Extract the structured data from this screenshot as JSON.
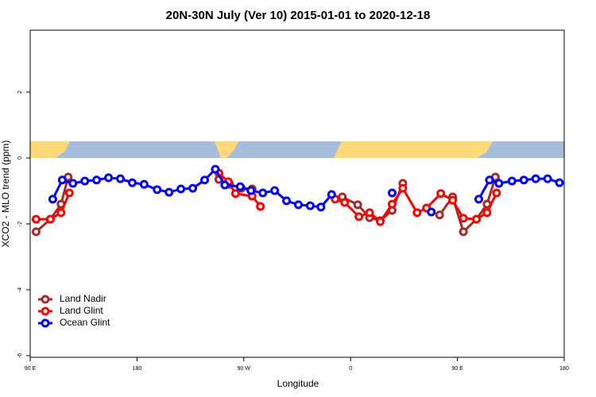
{
  "chart_data": {
    "type": "line",
    "title": "20N-30N July (Ver 10)   2015-01-01 to 2020-12-18",
    "x_label": "Longitude",
    "y_label": "XCO2 - MLO trend (ppm)",
    "xlim": [
      90,
      540
    ],
    "ylim": [
      -6.05,
      3.88
    ],
    "xticks": [
      {
        "value": 90,
        "label": "90 E"
      },
      {
        "value": 180,
        "label": "180"
      },
      {
        "value": 270,
        "label": "90 W"
      },
      {
        "value": 360,
        "label": "0"
      },
      {
        "value": 450,
        "label": "90 E"
      },
      {
        "value": 540,
        "label": "180"
      }
    ],
    "yticks": [
      -6,
      -4,
      -2,
      0,
      2
    ],
    "legend": "bottom-left",
    "series": [
      {
        "name": "Land Nadir",
        "color": "#a52a2a",
        "x": [
          95,
          107,
          116,
          122,
          240,
          249,
          258,
          268,
          277,
          300,
          353,
          366,
          376,
          385,
          395,
          404,
          420,
          435,
          446,
          455,
          466,
          475,
          482
        ],
        "values": [
          -2.24,
          -1.86,
          -1.4,
          -0.58,
          null,
          -0.65,
          -0.8,
          -0.92,
          -0.94,
          null,
          -1.18,
          -1.42,
          -1.81,
          -1.9,
          -1.59,
          -0.77,
          null,
          -1.73,
          -1.18,
          -2.24,
          -1.86,
          -1.4,
          -0.58
        ]
      },
      {
        "name": "Land Glint",
        "color": "#ff0000",
        "x": [
          95,
          107,
          116,
          123,
          200,
          249,
          257,
          263,
          277,
          284,
          320,
          347,
          355,
          367,
          376,
          385,
          395,
          404,
          416,
          424,
          436,
          446,
          455,
          466,
          475,
          483
        ],
        "values": [
          -1.86,
          -1.86,
          -1.66,
          -1.06,
          null,
          -0.46,
          -0.72,
          -1.08,
          -1.16,
          -1.47,
          null,
          -1.25,
          -1.35,
          -1.78,
          -1.66,
          -1.93,
          -1.4,
          -0.92,
          -1.66,
          -1.52,
          -1.08,
          -1.28,
          -1.83,
          -1.86,
          -1.66,
          -1.06
        ]
      },
      {
        "name": "Ocean Glint",
        "color": "#0000ff",
        "x": [
          109,
          117,
          126,
          136,
          146,
          156,
          166,
          176,
          186,
          197,
          207,
          217,
          227,
          237,
          246,
          254,
          267,
          276,
          286,
          296,
          306,
          316,
          326,
          335,
          344,
          370,
          395,
          410,
          428,
          450,
          468,
          477,
          485,
          496,
          506,
          516,
          526,
          536
        ],
        "values": [
          -1.25,
          -0.67,
          -0.77,
          -0.7,
          -0.67,
          -0.6,
          -0.63,
          -0.75,
          -0.8,
          -0.96,
          -1.04,
          -0.94,
          -0.92,
          -0.67,
          -0.34,
          -0.82,
          -0.87,
          -0.99,
          -1.06,
          -0.99,
          -1.3,
          -1.42,
          -1.45,
          -1.49,
          -1.11,
          null,
          -1.06,
          null,
          -1.64,
          null,
          -1.25,
          -0.67,
          -0.77,
          -0.7,
          -0.67,
          -0.63,
          -0.63,
          -0.75
        ]
      }
    ]
  }
}
